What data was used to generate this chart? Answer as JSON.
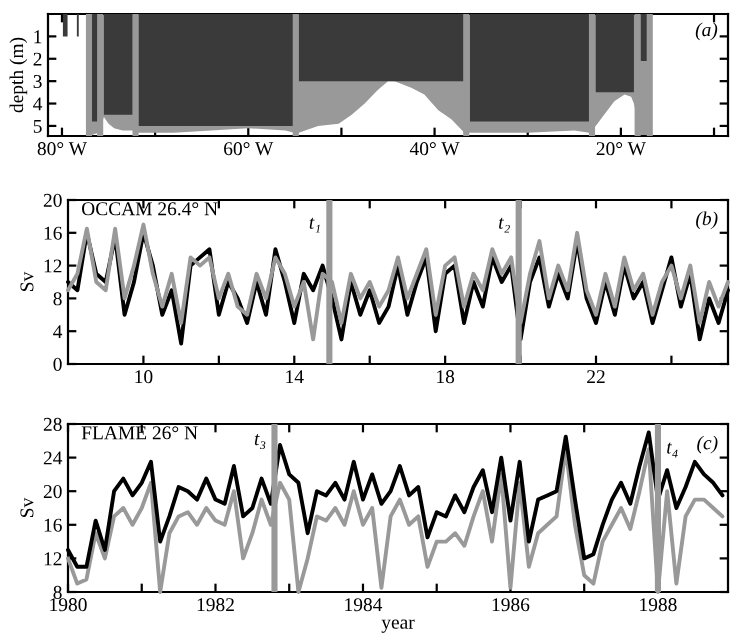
{
  "chart_data": [
    {
      "type": "area",
      "ylabel": "depth (m)",
      "annotations": [
        "(a)"
      ],
      "xlim": [
        -81.5,
        -8.5
      ],
      "xticks": [
        {
          "value": -80,
          "label": "80° W"
        },
        {
          "value": -70,
          "label": null
        },
        {
          "value": -60,
          "label": "60° W"
        },
        {
          "value": -50,
          "label": null
        },
        {
          "value": -40,
          "label": "40° W"
        },
        {
          "value": -30,
          "label": null
        },
        {
          "value": -20,
          "label": "20° W"
        },
        {
          "value": -10,
          "label": null
        }
      ],
      "ylim": [
        5.45,
        0
      ],
      "yticks": [
        1,
        2,
        3,
        4,
        5
      ],
      "series": [
        {
          "color": "#999999",
          "x": [
            -77.3,
            -76.8,
            -76.1,
            -75.5,
            -75.0,
            -74.4,
            -73.5,
            -72.4,
            -71.8,
            -68.0,
            -64.0,
            -60.0,
            -56.0,
            -55.1,
            -54.6,
            -52.5,
            -50.3,
            -48.9,
            -47.5,
            -46.1,
            -45.0,
            -44.3,
            -42.5,
            -41.1,
            -39.6,
            -38.2,
            -36.8,
            -36.2,
            -30.0,
            -25.0,
            -23.4,
            -22.7,
            -21.8,
            -20.7,
            -19.6,
            -18.9,
            -18.6,
            -17.9,
            -17.1,
            -16.8
          ],
          "values": [
            5.4,
            5.4,
            5.3,
            4.6,
            4.9,
            5.1,
            5.2,
            5.2,
            5.3,
            5.3,
            5.2,
            5.1,
            5.2,
            5.3,
            5.3,
            5.0,
            4.9,
            4.5,
            4.0,
            3.4,
            3.0,
            3.0,
            3.3,
            3.6,
            4.3,
            4.7,
            5.3,
            5.3,
            5.3,
            5.2,
            5.3,
            5.0,
            4.5,
            3.9,
            3.6,
            3.7,
            4.0,
            5.4,
            5.4,
            0.5
          ]
        },
        {
          "color": "#3a3a3a",
          "x": [
            -79.9,
            -79.9,
            -79.4,
            -79.4,
            -78.4,
            -78.4,
            -78.2,
            -78.2,
            -76.8,
            -76.8,
            -76.1,
            -76.1,
            -75.5,
            -75.5,
            -72.4,
            -72.4,
            -71.8,
            -71.8,
            -55.1,
            -55.1,
            -54.6,
            -54.6,
            -36.8,
            -36.8,
            -36.2,
            -36.2,
            -23.4,
            -23.4,
            -22.7,
            -22.7,
            -18.6,
            -18.6,
            -17.9,
            -17.9,
            -17.1,
            -17.1
          ],
          "values": [
            0,
            1.0,
            1.0,
            0,
            0,
            1.0,
            1.0,
            0,
            0,
            4.8,
            4.8,
            0,
            0,
            4.5,
            4.5,
            0,
            0,
            5.0,
            5.0,
            0,
            0,
            3.0,
            3.0,
            0,
            0,
            4.8,
            4.8,
            0,
            0,
            3.5,
            3.5,
            0,
            0,
            2.1,
            2.1,
            0
          ]
        }
      ],
      "ref_lines": [
        {
          "axis": "x",
          "value": -77.1,
          "color": "#999999"
        },
        {
          "axis": "x",
          "value": -75.9,
          "color": "#999999"
        },
        {
          "axis": "x",
          "value": -72.1,
          "color": "#999999"
        },
        {
          "axis": "x",
          "value": -54.9,
          "color": "#999999"
        },
        {
          "axis": "x",
          "value": -36.6,
          "color": "#999999"
        },
        {
          "axis": "x",
          "value": -23.1,
          "color": "#999999"
        },
        {
          "axis": "x",
          "value": -18.2,
          "color": "#999999"
        },
        {
          "axis": "x",
          "value": -16.9,
          "color": "#999999"
        }
      ]
    },
    {
      "type": "line",
      "title": "OCCAM 26.4° N",
      "ylabel": "Sv",
      "annotations": [
        "(b)",
        {
          "text": "t₁",
          "x": 14.93,
          "y": 16
        },
        {
          "text": "t₂",
          "x": 19.95,
          "y": 16
        }
      ],
      "xlim": [
        8,
        25.5
      ],
      "xticks": [
        10,
        {
          "value": 12,
          "label": null
        },
        14,
        {
          "value": 16,
          "label": null
        },
        18,
        {
          "value": 20,
          "label": null
        },
        22,
        {
          "value": 24,
          "label": null
        }
      ],
      "ylim": [
        0,
        20
      ],
      "yticks": [
        0,
        4,
        8,
        12,
        16,
        20
      ],
      "ref_lines": [
        {
          "axis": "x",
          "value": 14.93,
          "color": "#999999"
        },
        {
          "axis": "x",
          "value": 19.95,
          "color": "#999999"
        }
      ],
      "x": [
        8.0,
        8.25,
        8.5,
        8.75,
        9.0,
        9.25,
        9.5,
        9.75,
        10.0,
        10.25,
        10.5,
        10.75,
        11.0,
        11.25,
        11.5,
        11.75,
        12.0,
        12.25,
        12.5,
        12.75,
        13.0,
        13.25,
        13.5,
        13.75,
        14.0,
        14.25,
        14.5,
        14.75,
        15.0,
        15.25,
        15.5,
        15.75,
        16.0,
        16.25,
        16.5,
        16.75,
        17.0,
        17.25,
        17.5,
        17.75,
        18.0,
        18.25,
        18.5,
        18.75,
        19.0,
        19.25,
        19.5,
        19.75,
        20.0,
        20.25,
        20.5,
        20.75,
        21.0,
        21.25,
        21.5,
        21.75,
        22.0,
        22.25,
        22.5,
        22.75,
        23.0,
        23.25,
        23.5,
        23.75,
        24.0,
        24.25,
        24.5,
        24.75,
        25.0,
        25.25,
        25.5
      ],
      "series": [
        {
          "color": "#000000",
          "values": [
            10,
            9,
            16,
            11,
            10,
            15.5,
            6,
            10,
            16,
            12,
            6,
            9,
            2.5,
            12,
            13,
            14,
            6,
            10,
            8,
            5,
            10,
            6,
            14,
            10,
            5,
            11,
            9,
            12,
            8,
            3,
            10,
            6,
            9,
            5,
            7,
            12,
            6,
            10,
            13,
            4,
            11,
            12,
            5,
            10,
            7,
            13,
            10,
            12,
            3,
            10,
            13,
            7,
            11,
            8,
            15,
            8,
            5,
            10,
            6,
            12,
            8,
            10,
            5,
            9,
            13,
            7,
            11,
            3,
            8,
            5,
            9
          ]
        },
        {
          "color": "#999999",
          "values": [
            9,
            11,
            16.5,
            10,
            9,
            16.5,
            8,
            12,
            17,
            11,
            7,
            11,
            5,
            13,
            12,
            13,
            8,
            11,
            7,
            6,
            11,
            8,
            13,
            11,
            7,
            10,
            3,
            11,
            10,
            5,
            11,
            8,
            10,
            7,
            9,
            13,
            8,
            11,
            14,
            6,
            12,
            13,
            7,
            11,
            9,
            14,
            11,
            13,
            5,
            11,
            15,
            8,
            12,
            9,
            16,
            9,
            6,
            11,
            7,
            13,
            9,
            11,
            6,
            10,
            12,
            8,
            12,
            5,
            10,
            7,
            10
          ]
        }
      ]
    },
    {
      "type": "line",
      "title": "FLAME 26° N",
      "xlabel": "year",
      "ylabel": "Sv",
      "annotations": [
        "(c)",
        {
          "text": "t₃",
          "x": 1982.8,
          "y": 25
        },
        {
          "text": "t₄",
          "x": 1988.0,
          "y": 24
        }
      ],
      "xlim": [
        1980,
        1988.95
      ],
      "xticks": [
        1980,
        {
          "value": 1981,
          "label": null
        },
        1982,
        {
          "value": 1983,
          "label": null
        },
        1984,
        {
          "value": 1985,
          "label": null
        },
        1986,
        {
          "value": 1987,
          "label": null
        },
        1988
      ],
      "ylim": [
        8,
        28
      ],
      "yticks": [
        8,
        12,
        16,
        20,
        24,
        28
      ],
      "ref_lines": [
        {
          "axis": "x",
          "value": 1982.8,
          "color": "#999999"
        },
        {
          "axis": "x",
          "value": 1988.0,
          "color": "#999999"
        }
      ],
      "x": [
        1980.0,
        1980.125,
        1980.25,
        1980.375,
        1980.5,
        1980.625,
        1980.75,
        1980.875,
        1981.0,
        1981.125,
        1981.25,
        1981.375,
        1981.5,
        1981.625,
        1981.75,
        1981.875,
        1982.0,
        1982.125,
        1982.25,
        1982.375,
        1982.5,
        1982.625,
        1982.75,
        1982.875,
        1983.0,
        1983.125,
        1983.25,
        1983.375,
        1983.5,
        1983.625,
        1983.75,
        1983.875,
        1984.0,
        1984.125,
        1984.25,
        1984.375,
        1984.5,
        1984.625,
        1984.75,
        1984.875,
        1985.0,
        1985.125,
        1985.25,
        1985.375,
        1985.5,
        1985.625,
        1985.75,
        1985.875,
        1986.0,
        1986.125,
        1986.25,
        1986.375,
        1986.5,
        1986.625,
        1986.75,
        1986.875,
        1987.0,
        1987.125,
        1987.25,
        1987.375,
        1987.5,
        1987.625,
        1987.75,
        1987.875,
        1988.0,
        1988.125,
        1988.25,
        1988.375,
        1988.5,
        1988.625,
        1988.75,
        1988.875
      ],
      "series": [
        {
          "color": "#999999",
          "values": [
            12,
            9,
            9.5,
            15,
            12,
            17,
            18,
            16,
            18,
            21,
            8,
            15,
            17,
            17.5,
            16,
            18,
            16.5,
            16,
            20,
            12,
            15,
            19,
            16,
            21,
            19,
            8,
            12,
            17,
            16.5,
            18,
            16,
            20,
            16,
            18,
            8.5,
            17,
            19,
            16,
            17,
            11,
            14,
            14,
            15,
            13.5,
            17,
            20,
            14,
            22,
            8.5,
            21,
            11,
            15,
            16,
            17,
            25,
            16,
            10,
            9,
            14,
            16,
            18,
            15.5,
            20,
            25,
            8,
            20,
            9,
            17,
            19,
            19,
            18,
            17
          ]
        },
        {
          "color": "#000000",
          "values": [
            13,
            11,
            11,
            16.5,
            13,
            20,
            21.5,
            19.5,
            21,
            23.5,
            14,
            17,
            20.5,
            20,
            19,
            21.5,
            19,
            18.5,
            23,
            17,
            18,
            21.5,
            18.5,
            25.5,
            22,
            21,
            15,
            20,
            19.5,
            21,
            19,
            23.5,
            19,
            22,
            18.5,
            20,
            23,
            19.5,
            20.5,
            14.5,
            17.5,
            17,
            19.5,
            17.5,
            20.5,
            22.5,
            17.5,
            24,
            16.5,
            23.5,
            14,
            19,
            19.5,
            20,
            26.5,
            19,
            12,
            12.5,
            16,
            19,
            21,
            18.5,
            23,
            27,
            19,
            22.5,
            18,
            20.5,
            23.5,
            22,
            21,
            19.5
          ]
        }
      ]
    }
  ]
}
